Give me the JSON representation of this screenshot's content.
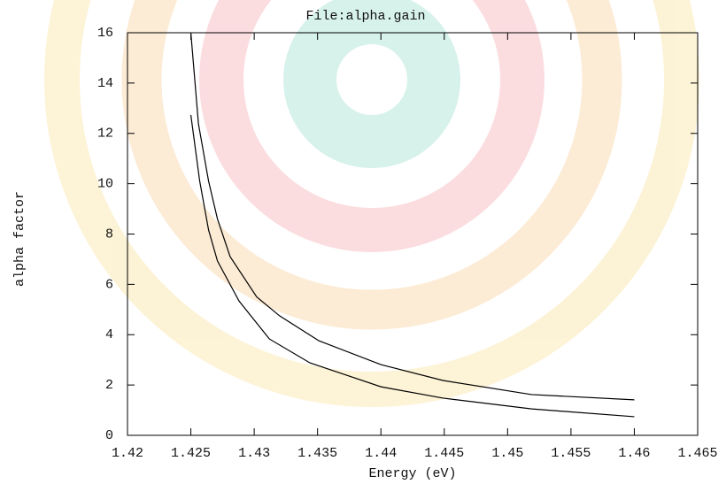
{
  "chart_data": {
    "type": "line",
    "title": "File:alpha.gain",
    "x_label": "Energy (eV)",
    "y_label": "alpha factor",
    "series": [
      {
        "color": "#000000",
        "x": [
          1.425,
          1.4256,
          1.4264,
          1.4271,
          1.4281,
          1.4302,
          1.432,
          1.4351,
          1.44,
          1.4449,
          1.4519,
          1.46
        ],
        "values": [
          16,
          12.38,
          10.1,
          8.6,
          7.1,
          5.5,
          4.75,
          3.76,
          2.81,
          2.18,
          1.62,
          1.41
        ]
      },
      {
        "color": "#000000",
        "x": [
          1.425,
          1.4257,
          1.4264,
          1.4271,
          1.4288,
          1.4312,
          1.4344,
          1.44,
          1.4449,
          1.4519,
          1.46
        ],
        "values": [
          12.73,
          10.1,
          8.16,
          6.93,
          5.34,
          3.83,
          2.88,
          1.93,
          1.48,
          1.05,
          0.74
        ]
      }
    ],
    "xlim": [
      1.42,
      1.465
    ],
    "xticks": [
      1.42,
      1.425,
      1.43,
      1.435,
      1.44,
      1.445,
      1.45,
      1.455,
      1.46,
      1.465
    ],
    "ylim": [
      0,
      16
    ],
    "yticks": [
      0,
      2,
      4,
      6,
      8,
      10,
      12,
      14,
      16
    ]
  }
}
